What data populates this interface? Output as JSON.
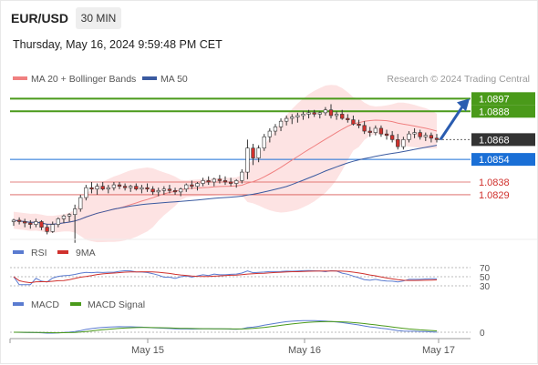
{
  "header": {
    "symbol": "EUR/USD",
    "timeframe": "30 MIN",
    "datetime": "Thursday, May 16, 2024 9:59:48 PM CET",
    "attribution": "Research © 2024 Trading Central"
  },
  "legend": {
    "ma20_label": "MA 20 + Bollinger Bands",
    "ma50_label": "MA 50",
    "rsi_label": "RSI",
    "rsi_ma_label": "9MA",
    "macd_label": "MACD",
    "macd_signal_label": "MACD Signal"
  },
  "colors": {
    "ma20": "#f08080",
    "bollinger_fill": "#fde3e3",
    "ma50": "#3a5aa0",
    "bull_candle": "#ffffff",
    "bear_candle": "#d0312d",
    "resistance_green": "#4a9a1a",
    "pivot_blue": "#1a6fd6",
    "support_red": "#d0312d",
    "last_price_badge": "#333333",
    "arrow": "#2a5cb0",
    "rsi_line": "#5a7bd0",
    "rsi_ma": "#d0312d",
    "macd_line": "#5a7bd0",
    "macd_signal": "#4a9a1a"
  },
  "chart_data": {
    "type": "candlestick",
    "instrument": "EUR/USD",
    "interval": "30 MIN",
    "x_axis_labels": [
      "May 15",
      "May 16",
      "May 17"
    ],
    "y_range": [
      1.08,
      1.0903
    ],
    "ohlc": [
      [
        1.081,
        1.0812,
        1.0807,
        1.0811
      ],
      [
        1.0811,
        1.0813,
        1.0808,
        1.081
      ],
      [
        1.081,
        1.0812,
        1.0806,
        1.0809
      ],
      [
        1.0809,
        1.0811,
        1.0805,
        1.0808
      ],
      [
        1.0808,
        1.0812,
        1.0806,
        1.081
      ],
      [
        1.081,
        1.0811,
        1.0804,
        1.0806
      ],
      [
        1.0806,
        1.0808,
        1.0801,
        1.0803
      ],
      [
        1.0803,
        1.081,
        1.0802,
        1.0808
      ],
      [
        1.0808,
        1.0813,
        1.0806,
        1.0812
      ],
      [
        1.0812,
        1.0815,
        1.0809,
        1.0814
      ],
      [
        1.0814,
        1.0816,
        1.081,
        1.0815
      ],
      [
        1.0815,
        1.0822,
        1.0795,
        1.0819
      ],
      [
        1.0819,
        1.0829,
        1.0817,
        1.0827
      ],
      [
        1.0827,
        1.0836,
        1.0825,
        1.0834
      ],
      [
        1.0834,
        1.0838,
        1.083,
        1.0833
      ],
      [
        1.0833,
        1.0837,
        1.0829,
        1.0835
      ],
      [
        1.0835,
        1.0838,
        1.0832,
        1.0833
      ],
      [
        1.0833,
        1.0836,
        1.083,
        1.0834
      ],
      [
        1.0834,
        1.0838,
        1.0832,
        1.0836
      ],
      [
        1.0836,
        1.0838,
        1.0833,
        1.0835
      ],
      [
        1.0835,
        1.0837,
        1.0832,
        1.0834
      ],
      [
        1.0834,
        1.0836,
        1.0831,
        1.0835
      ],
      [
        1.0835,
        1.0837,
        1.0832,
        1.0833
      ],
      [
        1.0833,
        1.0836,
        1.083,
        1.0834
      ],
      [
        1.0834,
        1.0837,
        1.0831,
        1.0833
      ],
      [
        1.0833,
        1.0835,
        1.0829,
        1.0831
      ],
      [
        1.0831,
        1.0834,
        1.0828,
        1.0832
      ],
      [
        1.0832,
        1.0835,
        1.0829,
        1.0833
      ],
      [
        1.0833,
        1.0836,
        1.083,
        1.0832
      ],
      [
        1.0832,
        1.0834,
        1.0829,
        1.0831
      ],
      [
        1.0831,
        1.0834,
        1.0828,
        1.0833
      ],
      [
        1.0833,
        1.0837,
        1.0831,
        1.0836
      ],
      [
        1.0836,
        1.0839,
        1.0833,
        1.0835
      ],
      [
        1.0835,
        1.0838,
        1.0832,
        1.0837
      ],
      [
        1.0837,
        1.0841,
        1.0835,
        1.0839
      ],
      [
        1.0839,
        1.0842,
        1.0836,
        1.0838
      ],
      [
        1.0838,
        1.0841,
        1.0835,
        1.084
      ],
      [
        1.084,
        1.0843,
        1.0837,
        1.0839
      ],
      [
        1.0839,
        1.0842,
        1.0836,
        1.0838
      ],
      [
        1.0838,
        1.0841,
        1.0835,
        1.0837
      ],
      [
        1.0837,
        1.084,
        1.0834,
        1.0839
      ],
      [
        1.0839,
        1.0847,
        1.0837,
        1.0845
      ],
      [
        1.0845,
        1.0868,
        1.084,
        1.0862
      ],
      [
        1.0862,
        1.0865,
        1.085,
        1.0855
      ],
      [
        1.0855,
        1.0864,
        1.0852,
        1.0862
      ],
      [
        1.0862,
        1.0872,
        1.086,
        1.087
      ],
      [
        1.087,
        1.0876,
        1.0866,
        1.0874
      ],
      [
        1.0874,
        1.0879,
        1.0871,
        1.0877
      ],
      [
        1.0877,
        1.0883,
        1.0874,
        1.0881
      ],
      [
        1.0881,
        1.0885,
        1.0878,
        1.0883
      ],
      [
        1.0883,
        1.0886,
        1.0879,
        1.0884
      ],
      [
        1.0884,
        1.0887,
        1.088,
        1.0885
      ],
      [
        1.0885,
        1.0888,
        1.0882,
        1.0886
      ],
      [
        1.0886,
        1.0889,
        1.0883,
        1.0887
      ],
      [
        1.0887,
        1.0889,
        1.0884,
        1.0886
      ],
      [
        1.0886,
        1.0888,
        1.0883,
        1.0887
      ],
      [
        1.0887,
        1.0891,
        1.0885,
        1.0889
      ],
      [
        1.0889,
        1.0893,
        1.0883,
        1.0885
      ],
      [
        1.0885,
        1.0888,
        1.0882,
        1.0886
      ],
      [
        1.0886,
        1.0889,
        1.0882,
        1.0883
      ],
      [
        1.0883,
        1.0886,
        1.088,
        1.0882
      ],
      [
        1.0882,
        1.0885,
        1.0878,
        1.0879
      ],
      [
        1.0879,
        1.0882,
        1.0876,
        1.0878
      ],
      [
        1.0878,
        1.0881,
        1.0872,
        1.0874
      ],
      [
        1.0874,
        1.0877,
        1.087,
        1.0873
      ],
      [
        1.0873,
        1.0878,
        1.0871,
        1.0876
      ],
      [
        1.0876,
        1.0878,
        1.087,
        1.0872
      ],
      [
        1.0872,
        1.0875,
        1.0868,
        1.0871
      ],
      [
        1.0871,
        1.0874,
        1.0866,
        1.0868
      ],
      [
        1.0868,
        1.0872,
        1.0861,
        1.0863
      ],
      [
        1.0863,
        1.087,
        1.0861,
        1.0868
      ],
      [
        1.0868,
        1.0874,
        1.0866,
        1.0872
      ],
      [
        1.0872,
        1.0876,
        1.0869,
        1.0873
      ],
      [
        1.0873,
        1.0875,
        1.0868,
        1.087
      ],
      [
        1.087,
        1.0873,
        1.0867,
        1.0871
      ],
      [
        1.0871,
        1.0873,
        1.0866,
        1.0869
      ],
      [
        1.0869,
        1.0872,
        1.0866,
        1.0868
      ]
    ],
    "levels": [
      {
        "value": 1.0897,
        "label": "1.0897",
        "kind": "resistance"
      },
      {
        "value": 1.0888,
        "label": "1.0888",
        "kind": "resistance"
      },
      {
        "value": 1.0868,
        "label": "1.0868",
        "kind": "last_price"
      },
      {
        "value": 1.0854,
        "label": "1.0854",
        "kind": "pivot"
      },
      {
        "value": 1.0838,
        "label": "1.0838",
        "kind": "support"
      },
      {
        "value": 1.0829,
        "label": "1.0829",
        "kind": "support"
      }
    ],
    "forecast_arrow": {
      "direction": "up",
      "from": 1.0868,
      "to": 1.0897
    },
    "rsi": {
      "levels": [
        70,
        50,
        30
      ],
      "level_labels": [
        "70",
        "50",
        "30"
      ]
    },
    "macd": {
      "zero_label": "0"
    }
  }
}
